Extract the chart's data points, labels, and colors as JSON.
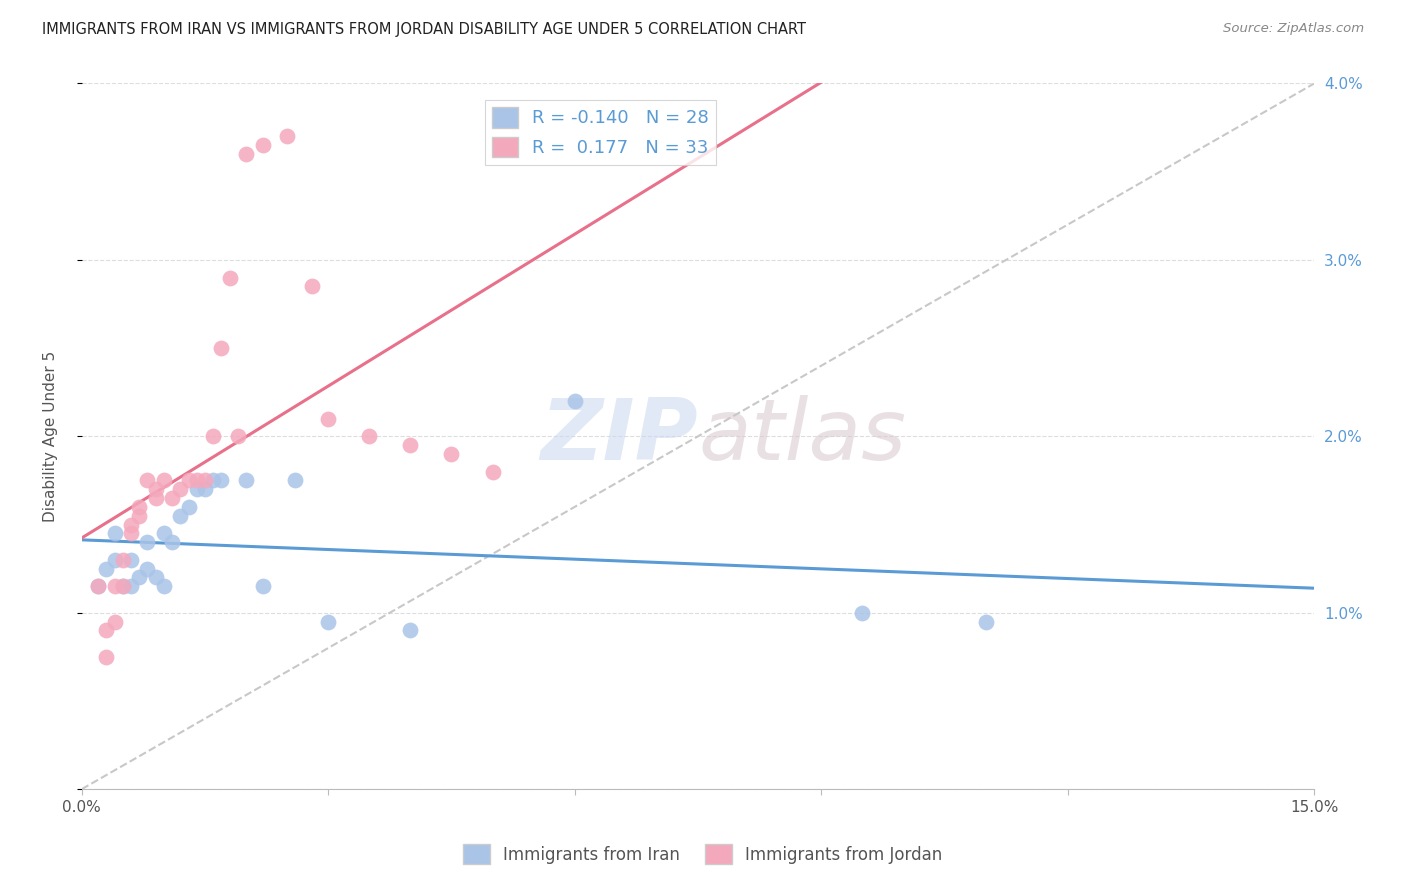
{
  "title": "IMMIGRANTS FROM IRAN VS IMMIGRANTS FROM JORDAN DISABILITY AGE UNDER 5 CORRELATION CHART",
  "source": "Source: ZipAtlas.com",
  "ylabel": "Disability Age Under 5",
  "xmin": 0.0,
  "xmax": 0.15,
  "ymin": 0.0,
  "ymax": 0.04,
  "iran_R": -0.14,
  "iran_N": 28,
  "jordan_R": 0.177,
  "jordan_N": 33,
  "iran_color": "#aac4e8",
  "jordan_color": "#f4a8bc",
  "iran_line_color": "#5b9bd5",
  "jordan_line_color": "#e8708a",
  "diagonal_color": "#c8c8c8",
  "legend_label_iran": "Immigrants from Iran",
  "legend_label_jordan": "Immigrants from Jordan",
  "iran_x": [
    0.002,
    0.003,
    0.004,
    0.004,
    0.005,
    0.006,
    0.006,
    0.007,
    0.008,
    0.008,
    0.009,
    0.01,
    0.01,
    0.011,
    0.012,
    0.013,
    0.014,
    0.015,
    0.016,
    0.017,
    0.02,
    0.022,
    0.026,
    0.03,
    0.04,
    0.06,
    0.095,
    0.11
  ],
  "iran_y": [
    0.0115,
    0.0125,
    0.013,
    0.0145,
    0.0115,
    0.0115,
    0.013,
    0.012,
    0.0125,
    0.014,
    0.012,
    0.0115,
    0.0145,
    0.014,
    0.0155,
    0.016,
    0.017,
    0.017,
    0.0175,
    0.0175,
    0.0175,
    0.0115,
    0.0175,
    0.0095,
    0.009,
    0.022,
    0.01,
    0.0095
  ],
  "jordan_x": [
    0.002,
    0.003,
    0.003,
    0.004,
    0.004,
    0.005,
    0.005,
    0.006,
    0.006,
    0.007,
    0.007,
    0.008,
    0.009,
    0.009,
    0.01,
    0.011,
    0.012,
    0.013,
    0.014,
    0.015,
    0.016,
    0.017,
    0.018,
    0.019,
    0.02,
    0.022,
    0.025,
    0.028,
    0.03,
    0.035,
    0.04,
    0.045,
    0.05
  ],
  "jordan_y": [
    0.0115,
    0.009,
    0.0075,
    0.0115,
    0.0095,
    0.013,
    0.0115,
    0.0145,
    0.015,
    0.016,
    0.0155,
    0.0175,
    0.0165,
    0.017,
    0.0175,
    0.0165,
    0.017,
    0.0175,
    0.0175,
    0.0175,
    0.02,
    0.025,
    0.029,
    0.02,
    0.036,
    0.0365,
    0.037,
    0.0285,
    0.021,
    0.02,
    0.0195,
    0.019,
    0.018
  ],
  "watermark_zip": "ZIP",
  "watermark_atlas": "atlas",
  "background_color": "#ffffff",
  "grid_color": "#dddddd"
}
